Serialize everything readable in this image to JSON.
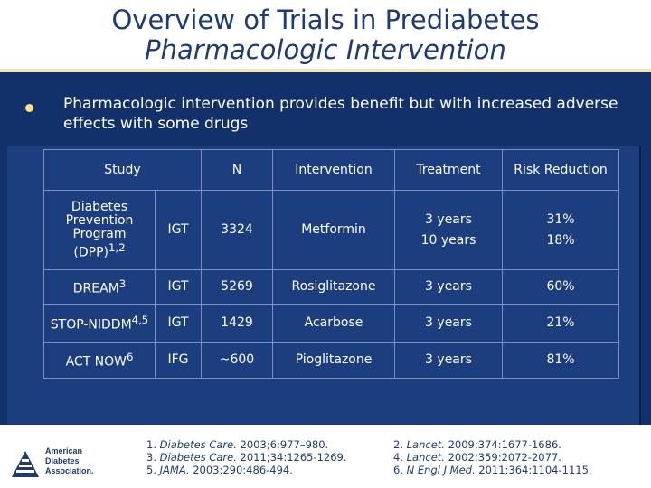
{
  "title": {
    "line1": "Overview of Trials in Prediabetes",
    "line2": "Pharmacologic Intervention"
  },
  "bullet": "Pharmacologic intervention provides benefit but with increased adverse effects with some drugs",
  "table": {
    "headers": {
      "study": "Study",
      "n": "N",
      "intervention": "Intervention",
      "treatment": "Treatment",
      "risk": "Risk Reduction"
    },
    "dpp": {
      "study": "Diabetes Prevention Program (DPP)",
      "sup": "1,2",
      "group": "IGT",
      "n": "3324",
      "intervention": "Metformin",
      "treatment1": "3 years",
      "risk1": "31%",
      "treatment2": "10 years",
      "risk2": "18%"
    },
    "rows": [
      {
        "study": "DREAM",
        "sup": "3",
        "group": "IGT",
        "n": "5269",
        "intervention": "Rosiglitazone",
        "treatment": "3 years",
        "risk": "60%"
      },
      {
        "study": "STOP-NIDDM",
        "sup": "4,5",
        "group": "IGT",
        "n": "1429",
        "intervention": "Acarbose",
        "treatment": "3 years",
        "risk": "21%"
      },
      {
        "study": "ACT NOW",
        "sup": "6",
        "group": "IFG",
        "n": "~600",
        "intervention": "Pioglitazone",
        "treatment": "3 years",
        "risk": "81%"
      }
    ]
  },
  "logo": {
    "line1": "American",
    "line2": "Diabetes",
    "line3": "Association."
  },
  "references": [
    {
      "num": "1.",
      "journal": "Diabetes Care.",
      "cite": "2003;6:977–980."
    },
    {
      "num": "2.",
      "journal": "Lancet.",
      "cite": "2009;374:1677-1686."
    },
    {
      "num": "3.",
      "journal": "Diabetes Care.",
      "cite": "2011;34:1265-1269."
    },
    {
      "num": "4.",
      "journal": "Lancet.",
      "cite": "2002;359:2072-2077."
    },
    {
      "num": "5.",
      "journal": "JAMA.",
      "cite": "2003;290:486-494."
    },
    {
      "num": "6.",
      "journal": "N Engl J Med.",
      "cite": "2011;364:1104-1115."
    }
  ],
  "colors": {
    "navy": "#12306a",
    "panel": "#1c3d7e",
    "title": "#1f3b73",
    "bullet": "#ffe37a"
  },
  "icons": {
    "bullet": "bullet-dot-icon",
    "logo": "ada-logo-icon"
  }
}
